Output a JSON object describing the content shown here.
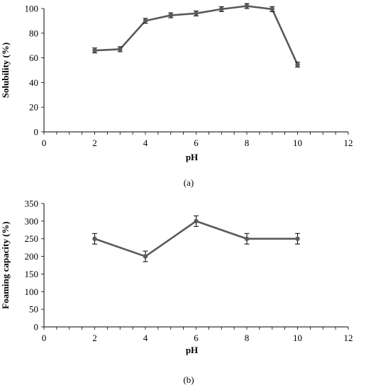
{
  "chart_data": [
    {
      "panel_label": "(a)",
      "type": "line",
      "x": [
        2,
        3,
        4,
        5,
        6,
        7,
        8,
        9,
        10
      ],
      "series": [
        {
          "values": [
            66,
            67,
            90,
            94.5,
            96,
            99.5,
            102,
            99.5,
            54.5
          ],
          "errors": [
            2,
            2,
            2,
            2,
            2,
            2,
            2,
            2,
            2
          ]
        }
      ],
      "xlabel": "pH",
      "ylabel": "Solubility (%)",
      "xlim": [
        0,
        12
      ],
      "ylim": [
        0,
        100
      ],
      "xticks": [
        0,
        2,
        4,
        6,
        8,
        10,
        12
      ],
      "yticks": [
        0,
        20,
        40,
        60,
        80,
        100
      ],
      "x_minor_step": 0.5,
      "grid": false,
      "line_color": "#5a5a5a",
      "marker_color": "#5a5a5a"
    },
    {
      "panel_label": "(b)",
      "type": "line",
      "x": [
        2,
        4,
        6,
        8,
        10
      ],
      "series": [
        {
          "values": [
            250,
            200,
            300,
            250,
            250
          ],
          "errors": [
            15,
            15,
            15,
            15,
            15
          ]
        }
      ],
      "xlabel": "pH",
      "ylabel": "Foaming capacity (%)",
      "xlim": [
        0,
        12
      ],
      "ylim": [
        0,
        350
      ],
      "xticks": [
        0,
        2,
        4,
        6,
        8,
        10,
        12
      ],
      "yticks": [
        0,
        50,
        100,
        150,
        200,
        250,
        300,
        350
      ],
      "x_minor_step": 0.5,
      "grid": false,
      "line_color": "#5a5a5a",
      "marker_color": "#5a5a5a"
    }
  ]
}
